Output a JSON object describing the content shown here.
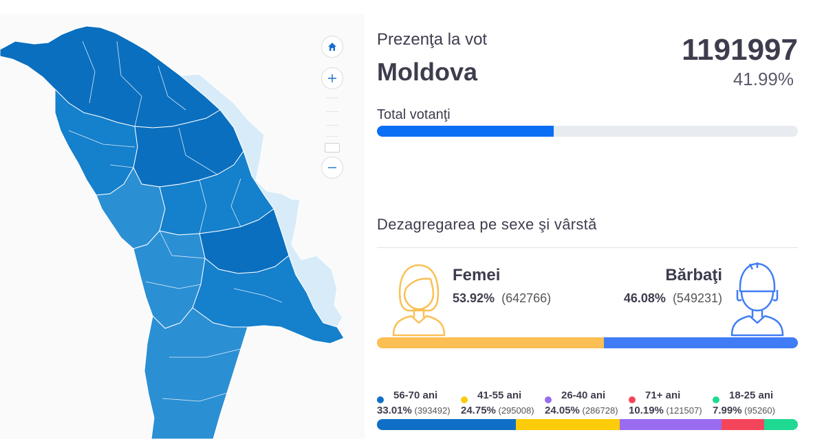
{
  "map": {
    "colors": {
      "region_dark": "#0a6fbf",
      "region_mid": "#1580cc",
      "region_light": "#2b8fd4",
      "transnistria": "#d7ecf8",
      "border": "#ffffff"
    },
    "controls": {
      "home": "home-icon",
      "zoom_in": "plus-icon",
      "zoom_out": "minus-icon"
    }
  },
  "header": {
    "label": "Prezenţa la vot",
    "region": "Moldova",
    "count": "1191997",
    "percent": "41.99%"
  },
  "total": {
    "label": "Total votanţi",
    "fill_fraction": 0.4199,
    "color": "#0b6ff5",
    "track_color": "#e8ebef"
  },
  "breakdown": {
    "title": "Dezagregarea pe sexe şi vârstă",
    "women": {
      "label": "Femei",
      "percent": "53.92%",
      "count": "(642766)",
      "fraction": 0.5392,
      "color": "#fbbf54",
      "icon": "woman-avatar-icon"
    },
    "men": {
      "label": "Bărbaţi",
      "percent": "46.08%",
      "count": "(549231)",
      "fraction": 0.4608,
      "color": "#3f7cf5",
      "icon": "man-avatar-icon"
    }
  },
  "age_groups": [
    {
      "label": "56-70 ani",
      "percent": "33.01%",
      "count": "(393492)",
      "fraction": 0.3301,
      "color": "#0f6fc6"
    },
    {
      "label": "41-55 ani",
      "percent": "24.75%",
      "count": "(295008)",
      "fraction": 0.2475,
      "color": "#fccc0a"
    },
    {
      "label": "26-40 ani",
      "percent": "24.05%",
      "count": "(286728)",
      "fraction": 0.2405,
      "color": "#9a6cf0"
    },
    {
      "label": "71+ ani",
      "percent": "10.19%",
      "count": "(121507)",
      "fraction": 0.1019,
      "color": "#f5455a"
    },
    {
      "label": "18-25 ani",
      "percent": "7.99%",
      "count": "(95260)",
      "fraction": 0.0799,
      "color": "#1fd993"
    }
  ]
}
